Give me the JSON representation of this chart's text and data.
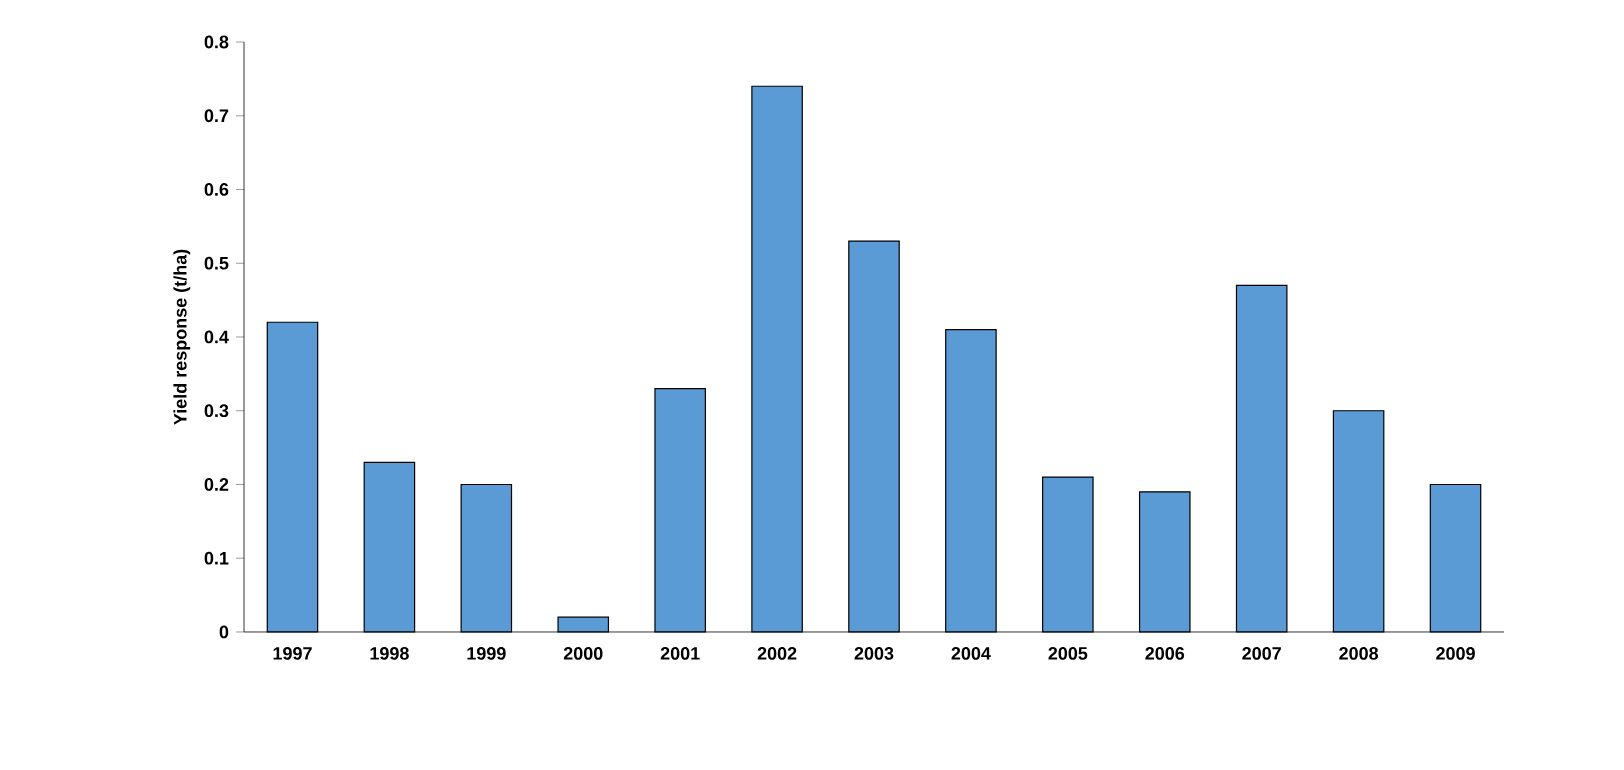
{
  "chart_data": {
    "type": "bar",
    "ylabel": "Yield response (t/ha)",
    "categories": [
      "1997",
      "1998",
      "1999",
      "2000",
      "2001",
      "2002",
      "2003",
      "2004",
      "2005",
      "2006",
      "2007",
      "2008",
      "2009"
    ],
    "values": [
      0.42,
      0.23,
      0.2,
      0.02,
      0.33,
      0.74,
      0.53,
      0.41,
      0.21,
      0.19,
      0.47,
      0.3,
      0.2
    ],
    "color": "#5b9bd5",
    "ylim": [
      0,
      0.8
    ],
    "yticks": [
      0,
      0.1,
      0.2,
      0.3,
      0.4,
      0.5,
      0.6,
      0.7,
      0.8
    ],
    "grid": false
  }
}
